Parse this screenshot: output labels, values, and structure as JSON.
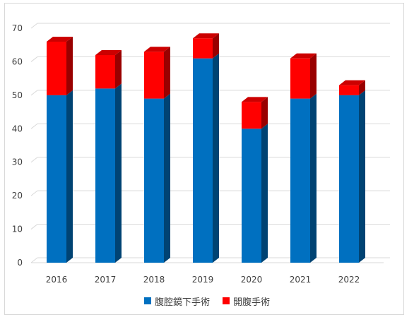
{
  "chart_data": {
    "type": "bar",
    "stacked": true,
    "three_d": true,
    "categories": [
      "2016",
      "2017",
      "2018",
      "2019",
      "2020",
      "2021",
      "2022"
    ],
    "series": [
      {
        "name": "腹腔鏡下手術",
        "values": [
          50,
          52,
          49,
          61,
          40,
          49,
          50
        ],
        "color": "#0070C0"
      },
      {
        "name": "開腹手術",
        "values": [
          16,
          10,
          14,
          6,
          8,
          12,
          3
        ],
        "color": "#FF0000"
      }
    ],
    "title": "",
    "xlabel": "",
    "ylabel": "",
    "ylim": [
      0,
      70
    ],
    "yticks": [
      0,
      10,
      20,
      30,
      40,
      50,
      60,
      70
    ],
    "grid": true,
    "legend_position": "bottom"
  }
}
